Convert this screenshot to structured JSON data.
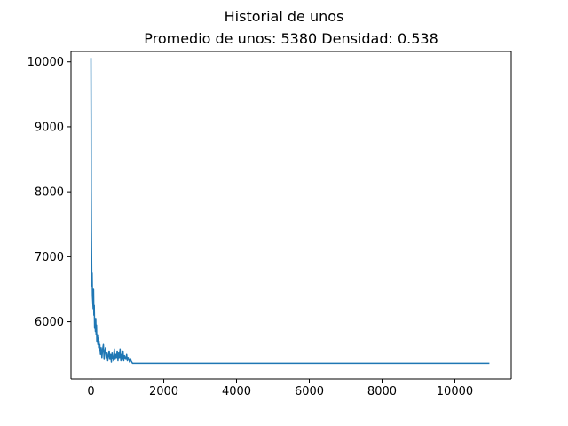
{
  "chart_data": {
    "type": "line",
    "suptitle": "Historial de unos",
    "title": "Promedio de unos: 5380 Densidad: 0.538",
    "xlabel": "",
    "ylabel": "",
    "xlim": [
      -550,
      11550
    ],
    "ylim": [
      5120,
      10160
    ],
    "xticks": [
      0,
      2000,
      4000,
      6000,
      8000,
      10000
    ],
    "xtick_labels": [
      "0",
      "2000",
      "4000",
      "6000",
      "8000",
      "10000"
    ],
    "yticks": [
      6000,
      7000,
      8000,
      9000,
      10000
    ],
    "ytick_labels": [
      "6000",
      "7000",
      "8000",
      "9000",
      "10000"
    ],
    "grid": false,
    "legend": "none",
    "series_color": "#1f77b4",
    "series": [
      {
        "x": [
          0,
          3,
          6,
          10,
          15,
          20,
          25,
          30,
          40,
          50,
          60,
          70,
          80,
          90,
          100,
          110,
          120,
          130,
          140,
          150,
          160,
          170,
          180,
          190,
          200,
          210,
          220,
          230,
          240,
          260,
          280,
          300,
          320,
          340,
          360,
          380,
          400,
          420,
          440,
          460,
          480,
          500,
          520,
          540,
          560,
          580,
          600,
          620,
          640,
          660,
          680,
          700,
          720,
          740,
          760,
          780,
          800,
          820,
          840,
          860,
          880,
          900,
          920,
          940,
          960,
          980,
          1000,
          1020,
          1040,
          1060,
          1080,
          1100,
          1120,
          1140,
          1160,
          1180,
          1200,
          2000,
          4000,
          6000,
          8000,
          10000,
          10950
        ],
        "y": [
          10060,
          9100,
          8000,
          7400,
          7050,
          6700,
          6550,
          6750,
          6400,
          6300,
          6200,
          6500,
          6100,
          6250,
          5900,
          5980,
          5850,
          6050,
          5800,
          5950,
          5700,
          5750,
          5800,
          5650,
          5750,
          5600,
          5700,
          5550,
          5650,
          5500,
          5600,
          5450,
          5580,
          5650,
          5420,
          5550,
          5600,
          5450,
          5520,
          5400,
          5480,
          5550,
          5420,
          5500,
          5380,
          5520,
          5450,
          5400,
          5580,
          5420,
          5500,
          5450,
          5550,
          5400,
          5520,
          5450,
          5580,
          5400,
          5500,
          5420,
          5550,
          5400,
          5480,
          5450,
          5420,
          5500,
          5400,
          5450,
          5420,
          5380,
          5440,
          5400,
          5380,
          5360,
          5360,
          5360,
          5360,
          5360,
          5360,
          5360,
          5360,
          5360,
          5360
        ]
      }
    ]
  }
}
